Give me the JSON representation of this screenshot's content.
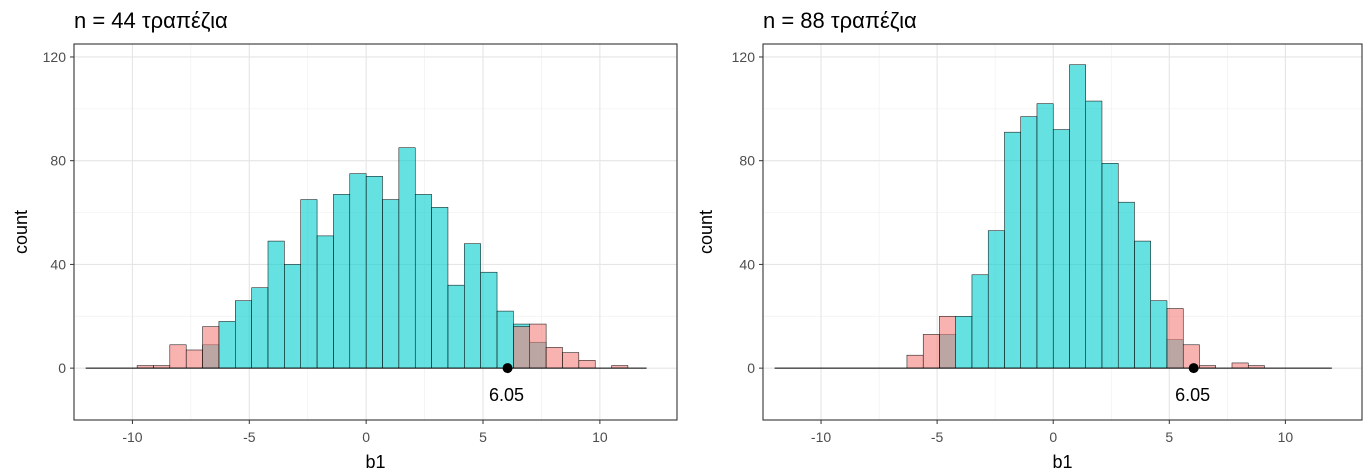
{
  "chart_data": [
    {
      "type": "bar",
      "title": "n = 44 τραπέζια",
      "xlabel": "b1",
      "ylabel": "count",
      "xlim": [
        -12.5,
        13.3
      ],
      "ylim": [
        -20,
        125
      ],
      "xticks": [
        -10,
        -5,
        0,
        5,
        10
      ],
      "xtick_labels": [
        "-10",
        "-5",
        "0",
        "5",
        "10"
      ],
      "yticks": [
        0,
        40,
        80,
        120
      ],
      "ytick_labels": [
        "0",
        "40",
        "80",
        "120"
      ],
      "grid": true,
      "legend": "none",
      "binwidth": 0.7,
      "series": [
        {
          "fill": "#00CDCD",
          "bins": [
            [
              -7.0,
              9
            ],
            [
              -6.3,
              18
            ],
            [
              -5.6,
              26
            ],
            [
              -4.9,
              31
            ],
            [
              -4.2,
              49
            ],
            [
              -3.5,
              40
            ],
            [
              -2.8,
              65
            ],
            [
              -2.1,
              51
            ],
            [
              -1.4,
              67
            ],
            [
              -0.7,
              75
            ],
            [
              0.0,
              74
            ],
            [
              0.7,
              65
            ],
            [
              1.4,
              85
            ],
            [
              2.1,
              67
            ],
            [
              2.8,
              62
            ],
            [
              3.5,
              32
            ],
            [
              4.2,
              48
            ],
            [
              4.9,
              37
            ],
            [
              5.6,
              22
            ],
            [
              6.3,
              17
            ],
            [
              7.0,
              10
            ]
          ]
        },
        {
          "fill": "#F47E7A",
          "bins": [
            [
              -9.8,
              1
            ],
            [
              -9.1,
              1
            ],
            [
              -8.4,
              9
            ],
            [
              -7.7,
              7
            ],
            [
              -7.0,
              16
            ],
            [
              6.3,
              16
            ],
            [
              7.0,
              17
            ],
            [
              7.7,
              8
            ],
            [
              8.4,
              6
            ],
            [
              9.1,
              3
            ],
            [
              10.5,
              1
            ]
          ]
        }
      ],
      "baseline_range": [
        -12,
        12
      ],
      "point": {
        "x": 6.05,
        "y": 0,
        "label": "6.05"
      }
    },
    {
      "type": "bar",
      "title": "n = 88 τραπέζια",
      "xlabel": "b1",
      "ylabel": "count",
      "xlim": [
        -12.5,
        13.3
      ],
      "ylim": [
        -20,
        125
      ],
      "xticks": [
        -10,
        -5,
        0,
        5,
        10
      ],
      "xtick_labels": [
        "-10",
        "-5",
        "0",
        "5",
        "10"
      ],
      "yticks": [
        0,
        40,
        80,
        120
      ],
      "ytick_labels": [
        "0",
        "40",
        "80",
        "120"
      ],
      "grid": true,
      "legend": "none",
      "binwidth": 0.7,
      "series": [
        {
          "fill": "#00CDCD",
          "bins": [
            [
              -4.9,
              13
            ],
            [
              -4.2,
              20
            ],
            [
              -3.5,
              36
            ],
            [
              -2.8,
              53
            ],
            [
              -2.1,
              91
            ],
            [
              -1.4,
              97
            ],
            [
              -0.7,
              102
            ],
            [
              0.0,
              92
            ],
            [
              0.7,
              117
            ],
            [
              1.4,
              103
            ],
            [
              2.1,
              79
            ],
            [
              2.8,
              64
            ],
            [
              3.5,
              49
            ],
            [
              4.2,
              26
            ],
            [
              4.9,
              11
            ]
          ]
        },
        {
          "fill": "#F47E7A",
          "bins": [
            [
              -6.3,
              5
            ],
            [
              -5.6,
              13
            ],
            [
              -4.9,
              20
            ],
            [
              4.9,
              23
            ],
            [
              5.6,
              9
            ],
            [
              6.3,
              1
            ],
            [
              7.7,
              2
            ],
            [
              8.4,
              1
            ]
          ]
        }
      ],
      "baseline_range": [
        -12,
        12
      ],
      "point": {
        "x": 6.05,
        "y": 0,
        "label": "6.05"
      }
    }
  ]
}
